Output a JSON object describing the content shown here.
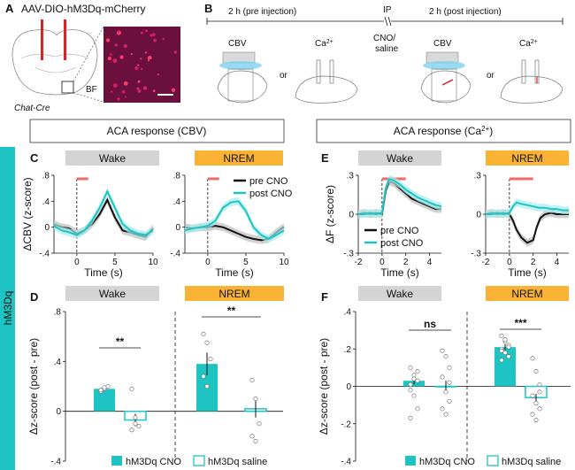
{
  "panel_letters": [
    "A",
    "B",
    "C",
    "D",
    "E",
    "F"
  ],
  "A": {
    "construct": "AAV-DIO-hM3Dq-mCherry",
    "region_label": "BF",
    "mouse_line": "Chat-Cre"
  },
  "B": {
    "pre_label": "2 h (pre injection)",
    "ip_label": "IP",
    "post_label": "2 h (post injection)",
    "injection_label": "CNO/\nsaline",
    "cbv_label": "CBV",
    "ca_label": "Ca",
    "ca_sup": "2+",
    "or_label": "or"
  },
  "headers": {
    "cbv_header": "ACA response (CBV)",
    "ca_header": "ACA response (Ca",
    "ca_header_sup": "2+",
    "ca_header_close": ")"
  },
  "side_label": "hM3Dq",
  "state_labels": {
    "wake": "Wake",
    "nrem": "NREM"
  },
  "colors": {
    "pre": "#111111",
    "post": "#1ec4c4",
    "stim_bar": "#f06a6a",
    "wake_box": "#d4d4d4",
    "nrem_box": "#f9b233",
    "side_bar": "#1ec4c4",
    "bar_cno": "#1ec4c4",
    "bar_saline_edge": "#1ec4c4"
  },
  "chart_data": [
    {
      "panel": "C",
      "state": "Wake",
      "type": "line",
      "xlabel": "Time (s)",
      "ylabel": "ΔCBV (z-score)",
      "xlim": [
        -3,
        10
      ],
      "ylim": [
        -0.4,
        0.8
      ],
      "xticks": [
        0,
        5,
        10
      ],
      "yticks": [
        -0.4,
        0,
        0.4,
        0.8
      ],
      "stim_bar": [
        0,
        1.5
      ],
      "series": [
        {
          "name": "pre CNO",
          "x": [
            -3,
            -2,
            -1,
            0,
            1,
            2,
            3,
            4,
            5,
            6,
            7,
            8,
            9,
            10
          ],
          "y": [
            0.05,
            0.0,
            -0.02,
            -0.1,
            -0.05,
            0.05,
            0.2,
            0.42,
            0.15,
            -0.05,
            -0.08,
            -0.12,
            -0.15,
            -0.02
          ]
        },
        {
          "name": "post CNO",
          "x": [
            -3,
            -2,
            -1,
            0,
            1,
            2,
            3,
            4,
            5,
            6,
            7,
            8,
            9,
            10
          ],
          "y": [
            0.02,
            -0.05,
            -0.08,
            -0.12,
            -0.05,
            0.1,
            0.3,
            0.55,
            0.3,
            0.05,
            -0.05,
            -0.1,
            -0.12,
            -0.05
          ]
        }
      ]
    },
    {
      "panel": "C",
      "state": "NREM",
      "type": "line",
      "xlabel": "Time (s)",
      "ylabel": "",
      "xlim": [
        -3,
        10
      ],
      "ylim": [
        -0.4,
        0.8
      ],
      "xticks": [
        0,
        5,
        10
      ],
      "yticks": [
        -0.4,
        0,
        0.4,
        0.8
      ],
      "stim_bar": [
        0,
        1.5
      ],
      "series": [
        {
          "name": "pre CNO",
          "x": [
            -3,
            -2,
            -1,
            0,
            1,
            2,
            3,
            4,
            5,
            6,
            7,
            8,
            9,
            10
          ],
          "y": [
            0.0,
            -0.02,
            0.0,
            0.0,
            0.02,
            0.0,
            -0.05,
            -0.1,
            -0.15,
            -0.18,
            -0.2,
            -0.18,
            -0.08,
            0.0
          ]
        },
        {
          "name": "post CNO",
          "x": [
            -3,
            -2,
            -1,
            0,
            1,
            2,
            3,
            4,
            5,
            6,
            7,
            8,
            9,
            10
          ],
          "y": [
            -0.05,
            -0.02,
            0.0,
            0.02,
            0.1,
            0.3,
            0.38,
            0.4,
            0.25,
            0.0,
            -0.12,
            -0.18,
            -0.12,
            -0.05
          ]
        }
      ]
    },
    {
      "panel": "E",
      "state": "Wake",
      "type": "line",
      "xlabel": "Time (s)",
      "ylabel": "ΔF (z-score)",
      "xlim": [
        -2,
        5
      ],
      "ylim": [
        -0.3,
        0.3
      ],
      "xticks": [
        -2,
        0,
        2,
        4
      ],
      "yticks": [
        -0.3,
        0,
        0.3
      ],
      "stim_bar": [
        0,
        2
      ],
      "series": [
        {
          "name": "pre CNO",
          "x": [
            -2,
            -1.5,
            -1,
            -0.5,
            0,
            0.3,
            0.6,
            1,
            1.5,
            2,
            2.5,
            3,
            3.5,
            4,
            4.5,
            5
          ],
          "y": [
            0.0,
            0.01,
            0.0,
            0.01,
            0.0,
            0.18,
            0.25,
            0.24,
            0.2,
            0.16,
            0.12,
            0.1,
            0.08,
            0.06,
            0.04,
            0.04
          ]
        },
        {
          "name": "post CNO",
          "x": [
            -2,
            -1.5,
            -1,
            -0.5,
            0,
            0.3,
            0.6,
            1,
            1.5,
            2,
            2.5,
            3,
            3.5,
            4,
            4.5,
            5
          ],
          "y": [
            0.0,
            0.0,
            0.01,
            0.0,
            0.01,
            0.2,
            0.27,
            0.26,
            0.23,
            0.19,
            0.16,
            0.13,
            0.11,
            0.09,
            0.07,
            0.06
          ]
        }
      ]
    },
    {
      "panel": "E",
      "state": "NREM",
      "type": "line",
      "xlabel": "Time (s)",
      "ylabel": "",
      "xlim": [
        -2,
        5
      ],
      "ylim": [
        -0.3,
        0.3
      ],
      "xticks": [
        -2,
        0,
        2,
        4
      ],
      "yticks": [
        -0.3,
        0,
        0.3
      ],
      "stim_bar": [
        0,
        2
      ],
      "series": [
        {
          "name": "pre CNO",
          "x": [
            -2,
            -1.5,
            -1,
            -0.5,
            0,
            0.3,
            0.6,
            1,
            1.5,
            2,
            2.3,
            2.6,
            3,
            3.5,
            4,
            4.5,
            5
          ],
          "y": [
            0.0,
            0.01,
            0.0,
            0.01,
            0.0,
            -0.05,
            -0.12,
            -0.18,
            -0.22,
            -0.2,
            -0.1,
            -0.03,
            0.0,
            0.01,
            0.0,
            0.0,
            0.0
          ]
        },
        {
          "name": "post CNO",
          "x": [
            -2,
            -1.5,
            -1,
            -0.5,
            0,
            0.3,
            0.6,
            1,
            1.5,
            2,
            2.5,
            3,
            3.5,
            4,
            4.5,
            5
          ],
          "y": [
            0.0,
            0.0,
            0.01,
            0.0,
            0.01,
            0.06,
            0.09,
            0.08,
            0.07,
            0.06,
            0.05,
            0.05,
            0.04,
            0.04,
            0.03,
            0.03
          ]
        }
      ]
    },
    {
      "panel": "D",
      "type": "bar",
      "ylabel": "Δz-score (post - pre)",
      "ylim": [
        -0.4,
        0.8
      ],
      "yticks": [
        -0.4,
        0,
        0.4,
        0.8
      ],
      "groups": [
        "Wake",
        "NREM"
      ],
      "series": [
        {
          "name": "hM3Dq CNO",
          "values": [
            0.18,
            0.38
          ],
          "err": [
            0.02,
            0.09
          ],
          "points": [
            [
              0.16,
              0.18,
              0.2,
              0.17,
              0.19
            ],
            [
              0.62,
              0.55,
              0.42,
              0.28,
              0.2
            ]
          ]
        },
        {
          "name": "hM3Dq saline",
          "values": [
            -0.07,
            0.02
          ],
          "err": [
            0.05,
            0.07
          ],
          "points": [
            [
              0.18,
              -0.05,
              -0.12,
              -0.15,
              -0.1
            ],
            [
              0.25,
              0.1,
              -0.1,
              -0.2,
              -0.24
            ]
          ]
        }
      ],
      "significance": [
        "**",
        "**"
      ]
    },
    {
      "panel": "F",
      "type": "bar",
      "ylabel": "Δz-score (post - pre)",
      "ylim": [
        -0.4,
        0.4
      ],
      "yticks": [
        -0.4,
        -0.2,
        0,
        0.2,
        0.4
      ],
      "groups": [
        "Wake",
        "NREM"
      ],
      "series": [
        {
          "name": "hM3Dq CNO",
          "values": [
            0.03,
            0.21
          ],
          "err": [
            0.02,
            0.015
          ],
          "points": [
            [
              0.1,
              0.06,
              0.03,
              0.01,
              -0.05,
              -0.12,
              -0.17,
              0.04,
              0.08,
              -0.02
            ],
            [
              0.27,
              0.24,
              0.22,
              0.2,
              0.18,
              0.16,
              0.14,
              0.25,
              0.21,
              0.19
            ]
          ]
        },
        {
          "name": "hM3Dq saline",
          "values": [
            0.0,
            -0.06
          ],
          "err": [
            0.03,
            0.02
          ],
          "points": [
            [
              0.19,
              0.16,
              0.1,
              0.05,
              -0.03,
              -0.08,
              -0.12,
              -0.15,
              0.02
            ],
            [
              0.15,
              0.08,
              0.01,
              -0.05,
              -0.09,
              -0.12,
              -0.15,
              -0.18,
              -0.03
            ]
          ]
        }
      ],
      "significance": [
        "ns",
        "***"
      ]
    }
  ],
  "legends": {
    "line_pre": "pre CNO",
    "line_post": "post CNO",
    "bar_cno": "hM3Dq CNO",
    "bar_saline": "hM3Dq saline"
  }
}
